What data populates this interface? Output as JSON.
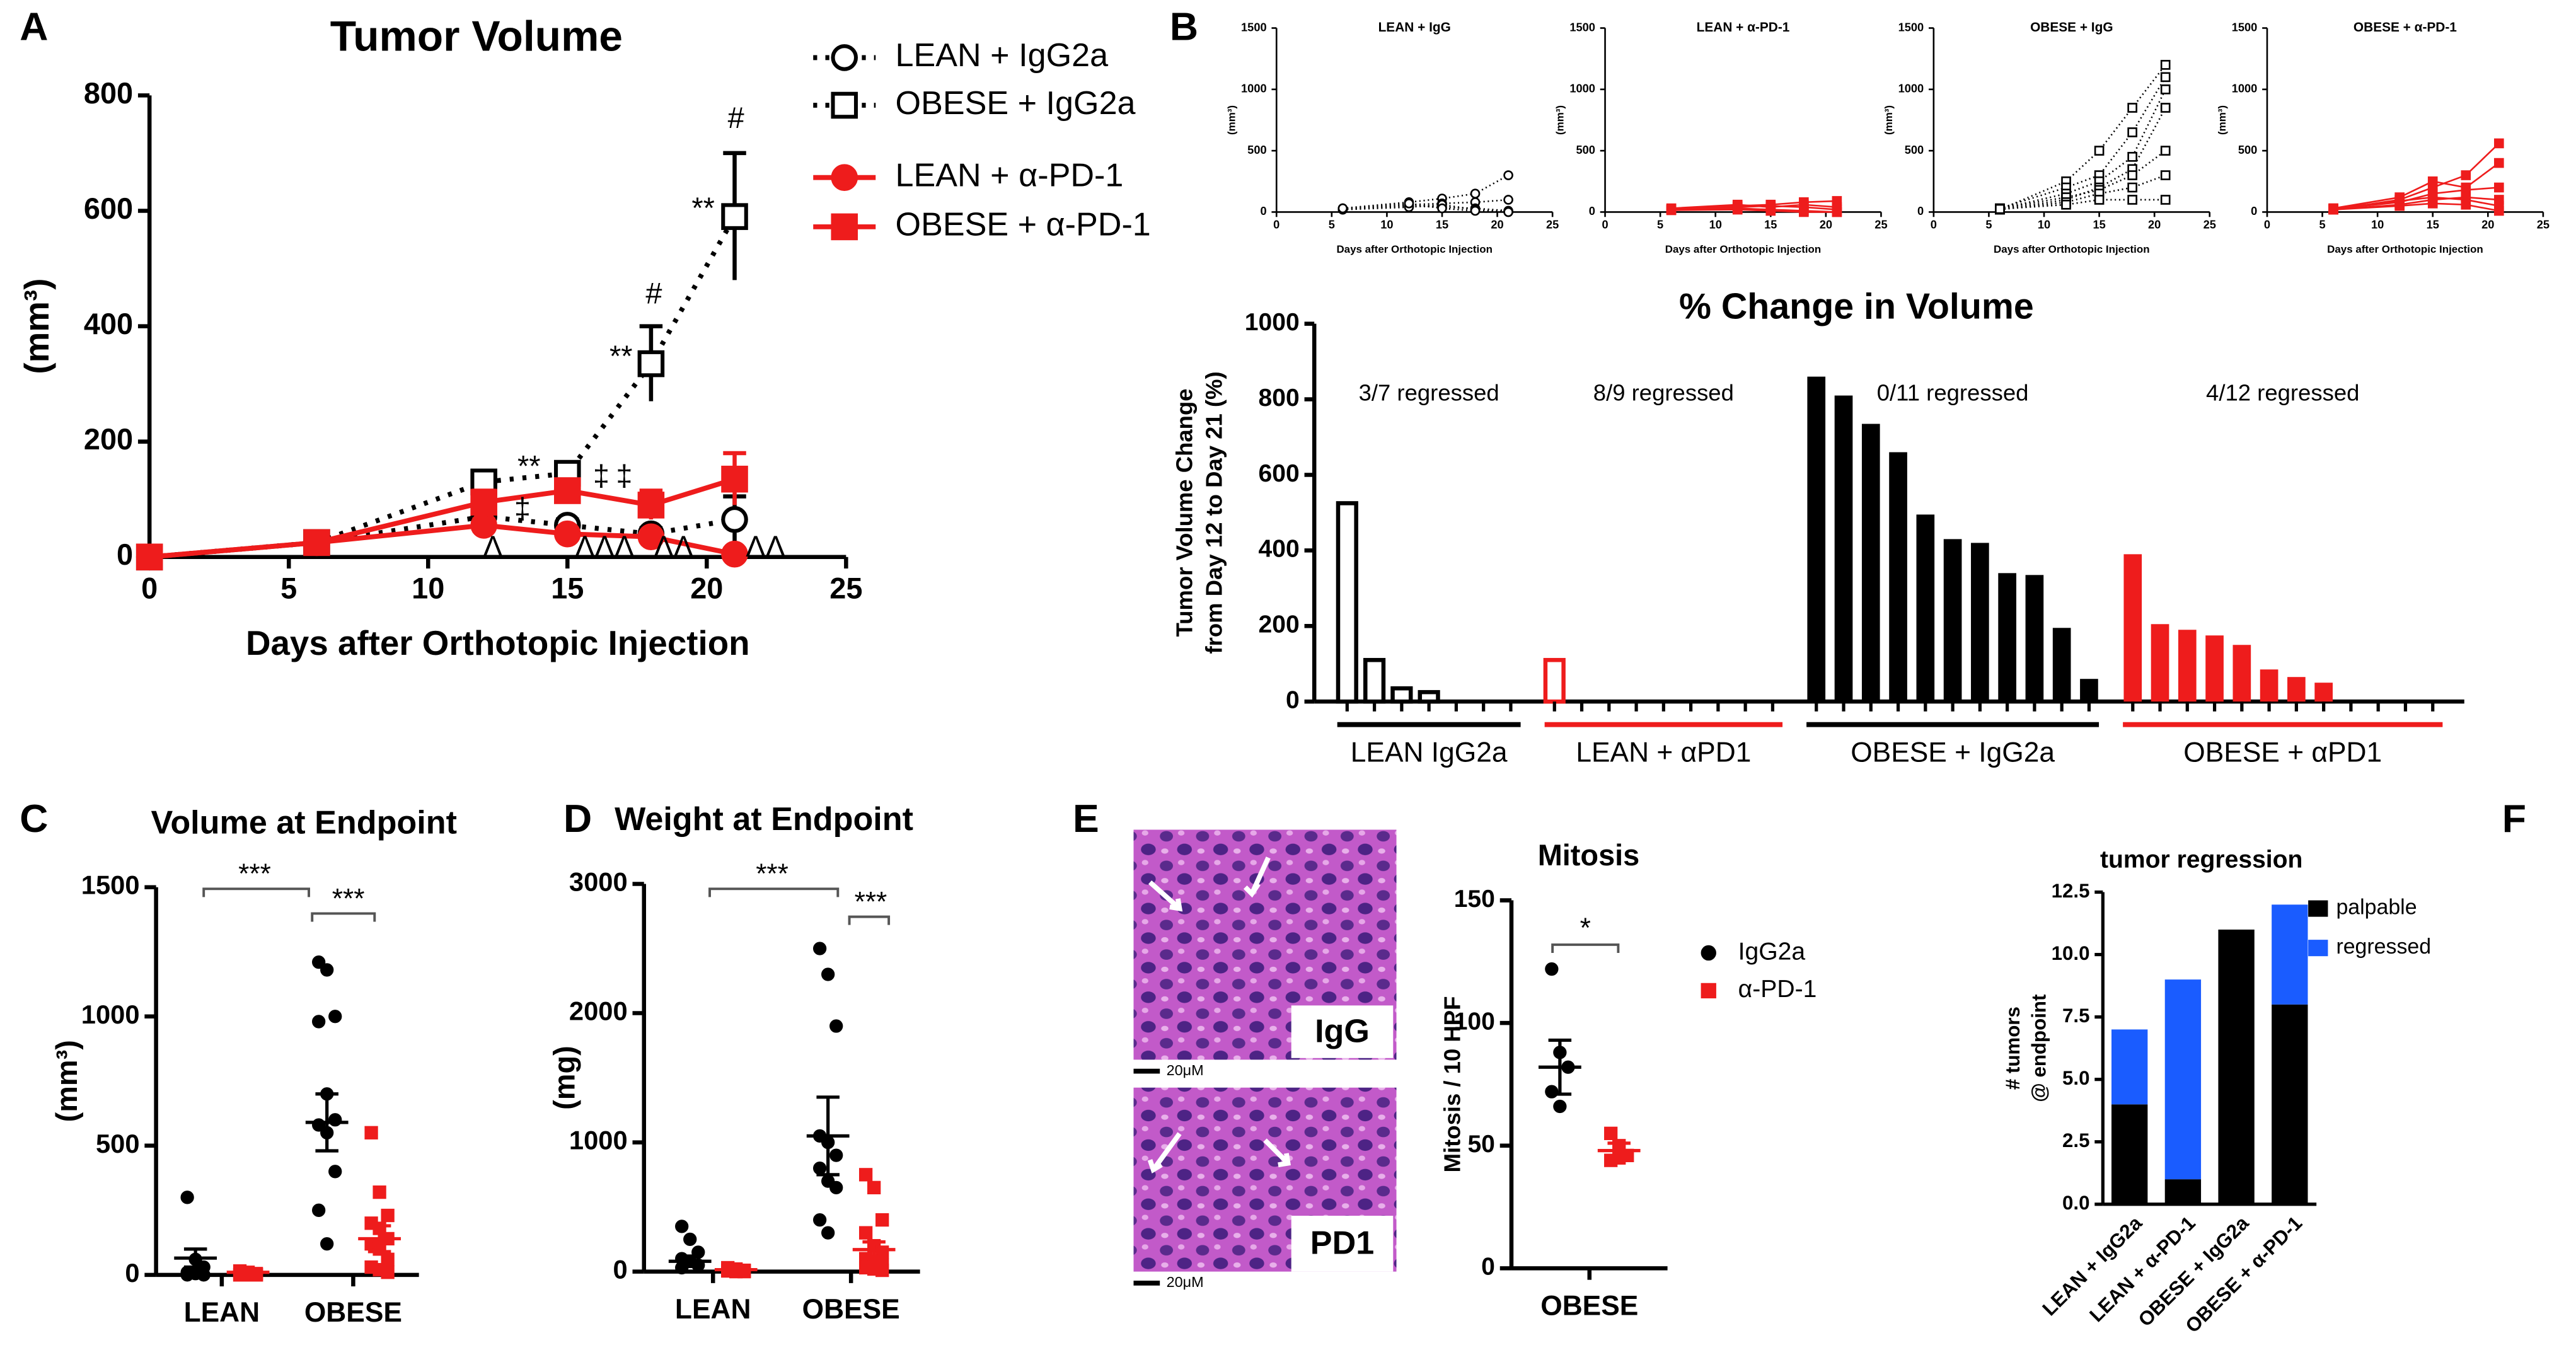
{
  "chart_data": [
    {
      "type": "line",
      "panel": "A",
      "title": "Tumor Volume",
      "xlabel": "Days after Orthotopic Injection",
      "ylabel": "(mm³)",
      "x": [
        0,
        6,
        12,
        15,
        18,
        21
      ],
      "xlim": [
        0,
        25
      ],
      "xticks": [
        0,
        5,
        10,
        15,
        20,
        25
      ],
      "ylim": [
        0,
        800
      ],
      "yticks": [
        0,
        200,
        400,
        600,
        800
      ],
      "series": [
        {
          "name": "LEAN + IgG2a",
          "color": "#000000",
          "marker": "circle",
          "filled": false,
          "dotted": true,
          "values": [
            0,
            25,
            70,
            55,
            40,
            65
          ],
          "errors": [
            0,
            5,
            20,
            10,
            10,
            40
          ]
        },
        {
          "name": "OBESE + IgG2a",
          "color": "#000000",
          "marker": "square",
          "filled": false,
          "dotted": true,
          "values": [
            0,
            25,
            130,
            145,
            335,
            590
          ],
          "errors": [
            0,
            5,
            15,
            15,
            65,
            110
          ]
        },
        {
          "name": "LEAN + α-PD-1",
          "color": "#ee1c1c",
          "marker": "circle",
          "filled": true,
          "dotted": false,
          "values": [
            0,
            25,
            55,
            40,
            35,
            5
          ],
          "errors": [
            0,
            5,
            10,
            8,
            8,
            3
          ]
        },
        {
          "name": "OBESE + α-PD-1",
          "color": "#ee1c1c",
          "marker": "square",
          "filled": true,
          "dotted": false,
          "values": [
            0,
            25,
            95,
            115,
            90,
            135
          ],
          "errors": [
            0,
            5,
            20,
            15,
            25,
            45
          ]
        }
      ],
      "annotations": [
        "**",
        "‡",
        "‡",
        "‡",
        "**",
        "#",
        "**",
        "#",
        "Λ",
        "ΛΛΛ",
        "ΛΛ",
        "ΛΛ"
      ]
    },
    {
      "type": "line",
      "panel": "B",
      "title": "LEAN + IgG",
      "xlabel": "Days after Orthotopic Injection",
      "ylabel": "(mm³)",
      "x": [
        6,
        12,
        15,
        18,
        21
      ],
      "xlim": [
        0,
        25
      ],
      "xticks": [
        0,
        5,
        10,
        15,
        20,
        25
      ],
      "ylim": [
        0,
        1500
      ],
      "yticks": [
        0,
        500,
        1000,
        1500
      ],
      "series": [
        {
          "color": "#000000",
          "marker": "circle",
          "filled": false,
          "dotted": true,
          "values": [
            30,
            80,
            110,
            150,
            300
          ]
        },
        {
          "color": "#000000",
          "marker": "circle",
          "filled": false,
          "dotted": true,
          "values": [
            20,
            60,
            70,
            80,
            100
          ]
        },
        {
          "color": "#000000",
          "marker": "circle",
          "filled": false,
          "dotted": true,
          "values": [
            25,
            50,
            40,
            30,
            10
          ]
        },
        {
          "color": "#000000",
          "marker": "circle",
          "filled": false,
          "dotted": true,
          "values": [
            20,
            40,
            60,
            20,
            0
          ]
        },
        {
          "color": "#000000",
          "marker": "circle",
          "filled": false,
          "dotted": true,
          "values": [
            30,
            70,
            30,
            10,
            0
          ]
        }
      ]
    },
    {
      "type": "line",
      "title": "LEAN + α-PD-1",
      "xlabel": "Days after Orthotopic Injection",
      "ylabel": "(mm³)",
      "x": [
        6,
        12,
        15,
        18,
        21
      ],
      "xlim": [
        0,
        25
      ],
      "xticks": [
        0,
        5,
        10,
        15,
        20,
        25
      ],
      "ylim": [
        0,
        1500
      ],
      "yticks": [
        0,
        500,
        1000,
        1500
      ],
      "series": [
        {
          "color": "#ee1c1c",
          "marker": "square",
          "filled": true,
          "dotted": false,
          "values": [
            20,
            50,
            60,
            80,
            90
          ]
        },
        {
          "color": "#ee1c1c",
          "marker": "square",
          "filled": true,
          "dotted": false,
          "values": [
            25,
            40,
            50,
            40,
            20
          ]
        },
        {
          "color": "#ee1c1c",
          "marker": "square",
          "filled": true,
          "dotted": false,
          "values": [
            30,
            60,
            40,
            60,
            40
          ]
        },
        {
          "color": "#ee1c1c",
          "marker": "square",
          "filled": true,
          "dotted": false,
          "values": [
            20,
            30,
            20,
            10,
            0
          ]
        },
        {
          "color": "#ee1c1c",
          "marker": "square",
          "filled": true,
          "dotted": false,
          "values": [
            15,
            20,
            10,
            0,
            0
          ]
        }
      ]
    },
    {
      "type": "line",
      "title": "OBESE + IgG",
      "xlabel": "Days after Orthotopic Injection",
      "ylabel": "(mm³)",
      "x": [
        6,
        12,
        15,
        18,
        21
      ],
      "xlim": [
        0,
        25
      ],
      "xticks": [
        0,
        5,
        10,
        15,
        20,
        25
      ],
      "ylim": [
        0,
        1500
      ],
      "yticks": [
        0,
        500,
        1000,
        1500
      ],
      "series": [
        {
          "color": "#000000",
          "marker": "square",
          "filled": false,
          "dotted": true,
          "values": [
            20,
            250,
            500,
            850,
            1200
          ]
        },
        {
          "color": "#000000",
          "marker": "square",
          "filled": false,
          "dotted": true,
          "values": [
            30,
            200,
            300,
            650,
            1100
          ]
        },
        {
          "color": "#000000",
          "marker": "square",
          "filled": false,
          "dotted": true,
          "values": [
            25,
            150,
            250,
            450,
            1000
          ]
        },
        {
          "color": "#000000",
          "marker": "square",
          "filled": false,
          "dotted": true,
          "values": [
            20,
            100,
            200,
            350,
            850
          ]
        },
        {
          "color": "#000000",
          "marker": "square",
          "filled": false,
          "dotted": true,
          "values": [
            30,
            120,
            180,
            300,
            500
          ]
        },
        {
          "color": "#000000",
          "marker": "square",
          "filled": false,
          "dotted": true,
          "values": [
            20,
            80,
            150,
            200,
            300
          ]
        },
        {
          "color": "#000000",
          "marker": "square",
          "filled": false,
          "dotted": true,
          "values": [
            25,
            60,
            100,
            100,
            100
          ]
        }
      ]
    },
    {
      "type": "line",
      "title": "OBESE + α-PD-1",
      "xlabel": "Days after Orthotopic Injection",
      "ylabel": "(mm³)",
      "x": [
        6,
        12,
        15,
        18,
        21
      ],
      "xlim": [
        0,
        25
      ],
      "xticks": [
        0,
        5,
        10,
        15,
        20,
        25
      ],
      "ylim": [
        0,
        1500
      ],
      "yticks": [
        0,
        500,
        1000,
        1500
      ],
      "series": [
        {
          "color": "#ee1c1c",
          "marker": "square",
          "filled": true,
          "dotted": false,
          "values": [
            20,
            100,
            200,
            300,
            560
          ]
        },
        {
          "color": "#ee1c1c",
          "marker": "square",
          "filled": true,
          "dotted": false,
          "values": [
            30,
            120,
            250,
            200,
            400
          ]
        },
        {
          "color": "#ee1c1c",
          "marker": "square",
          "filled": true,
          "dotted": false,
          "values": [
            25,
            80,
            150,
            180,
            200
          ]
        },
        {
          "color": "#ee1c1c",
          "marker": "square",
          "filled": true,
          "dotted": false,
          "values": [
            20,
            60,
            100,
            120,
            100
          ]
        },
        {
          "color": "#ee1c1c",
          "marker": "square",
          "filled": true,
          "dotted": false,
          "values": [
            30,
            90,
            120,
            100,
            50
          ]
        },
        {
          "color": "#ee1c1c",
          "marker": "square",
          "filled": true,
          "dotted": false,
          "values": [
            20,
            50,
            70,
            60,
            10
          ]
        }
      ]
    },
    {
      "type": "bar",
      "title": "% Change in Volume",
      "ylabel": [
        "Tumor Volume Change",
        "from Day 12 to Day 21 (%)"
      ],
      "ylim": [
        0,
        1000
      ],
      "yticks": [
        0,
        200,
        400,
        600,
        800,
        1000
      ],
      "groups": [
        {
          "name": "LEAN IgG2a",
          "note": "3/7 regressed",
          "color": "#000000",
          "filled": false,
          "values": [
            525,
            110,
            35,
            25,
            0,
            0,
            0
          ]
        },
        {
          "name": "LEAN + αPD1",
          "note": "8/9 regressed",
          "color": "#ee1c1c",
          "filled": false,
          "values": [
            110,
            0,
            0,
            0,
            0,
            0,
            0,
            0,
            0
          ]
        },
        {
          "name": "OBESE + IgG2a",
          "note": "0/11 regressed",
          "color": "#000000",
          "filled": true,
          "values": [
            860,
            810,
            735,
            660,
            495,
            430,
            420,
            340,
            335,
            195,
            60
          ]
        },
        {
          "name": "OBESE + αPD1",
          "note": "4/12 regressed",
          "color": "#ee1c1c",
          "filled": true,
          "values": [
            390,
            205,
            190,
            175,
            150,
            85,
            65,
            50,
            0,
            0,
            0,
            0
          ]
        }
      ]
    },
    {
      "type": "scatter",
      "panel": "C",
      "title": "Volume at Endpoint",
      "ylabel": "(mm³)",
      "categories": [
        "LEAN",
        "OBESE"
      ],
      "ylim": [
        0,
        1500
      ],
      "yticks": [
        0,
        500,
        1000,
        1500
      ],
      "series": [
        {
          "color": "#000000",
          "marker": "circle",
          "values": [
            [
              300,
              60,
              30,
              10,
              5,
              0,
              0
            ],
            [
              1210,
              1180,
              1000,
              980,
              700,
              600,
              580,
              550,
              400,
              250,
              120
            ]
          ],
          "mean": [
            65,
            590
          ],
          "sem": [
            35,
            110
          ]
        },
        {
          "color": "#ee1c1c",
          "marker": "square",
          "values": [
            [
              15,
              10,
              5,
              0,
              0,
              0,
              0,
              0,
              0
            ],
            [
              550,
              320,
              230,
              200,
              180,
              140,
              120,
              100,
              60,
              30,
              20,
              10
            ]
          ],
          "mean": [
            10,
            140
          ],
          "sem": [
            5,
            50
          ]
        }
      ],
      "annotations": [
        "***",
        "***"
      ]
    },
    {
      "type": "scatter",
      "panel": "D",
      "title": "Weight at Endpoint",
      "ylabel": "(mg)",
      "categories": [
        "LEAN",
        "OBESE"
      ],
      "ylim": [
        0,
        3000
      ],
      "yticks": [
        0,
        1000,
        2000,
        3000
      ],
      "series": [
        {
          "color": "#000000",
          "marker": "circle",
          "values": [
            [
              350,
              250,
              150,
              100,
              80,
              50,
              30
            ],
            [
              2500,
              2300,
              1900,
              1050,
              1000,
              900,
              800,
              700,
              650,
              400,
              300
            ]
          ],
          "mean": [
            80,
            1050
          ],
          "sem": [
            40,
            300
          ]
        },
        {
          "color": "#ee1c1c",
          "marker": "square",
          "values": [
            [
              30,
              20,
              10,
              10,
              5,
              5,
              5,
              0,
              0
            ],
            [
              750,
              650,
              400,
              300,
              200,
              150,
              100,
              80,
              50,
              30,
              20,
              10
            ]
          ],
          "mean": [
            15,
            170
          ],
          "sem": [
            5,
            60
          ]
        }
      ],
      "annotations": [
        "***",
        "***"
      ]
    },
    {
      "type": "scatter",
      "panel": "E",
      "title": "Mitosis",
      "ylabel": "Mitosis / 10 HPF",
      "categories": [
        "OBESE"
      ],
      "ylim": [
        0,
        150
      ],
      "yticks": [
        0,
        50,
        100,
        150
      ],
      "series": [
        {
          "name": "IgG2a",
          "color": "#000000",
          "marker": "circle",
          "values": [
            [
              122,
              88,
              82,
              72,
              66
            ]
          ],
          "mean": [
            82
          ],
          "sem": [
            11
          ]
        },
        {
          "name": "α-PD-1",
          "color": "#ee1c1c",
          "marker": "square",
          "values": [
            [
              55,
              50,
              46,
              44,
              45
            ]
          ],
          "mean": [
            48
          ],
          "sem": [
            3
          ]
        }
      ],
      "annotations": [
        "*"
      ],
      "micrographs": {
        "labels": [
          "IgG",
          "PD1"
        ],
        "scale_bar": "20μM"
      }
    },
    {
      "type": "stacked_bar",
      "panel": "F",
      "title": "tumor regression",
      "ylabel": [
        "# tumors",
        "@ endpoint"
      ],
      "categories": [
        "LEAN + IgG2a",
        "LEAN + α-PD-1",
        "OBESE + IgG2a",
        "OBESE + α-PD-1"
      ],
      "ylim": [
        0,
        12.5
      ],
      "yticks": [
        {
          "value": 0,
          "label": "0.0"
        },
        2.5,
        {
          "value": 5,
          "label": "5.0"
        },
        7.5,
        {
          "value": 10,
          "label": "10.0"
        },
        12.5
      ],
      "series": [
        {
          "name": "palpable",
          "color": "#000000",
          "values": [
            4,
            1,
            11,
            8
          ]
        },
        {
          "name": "regressed",
          "color": "#1a5cff",
          "values": [
            3,
            8,
            0,
            4
          ]
        }
      ]
    }
  ]
}
